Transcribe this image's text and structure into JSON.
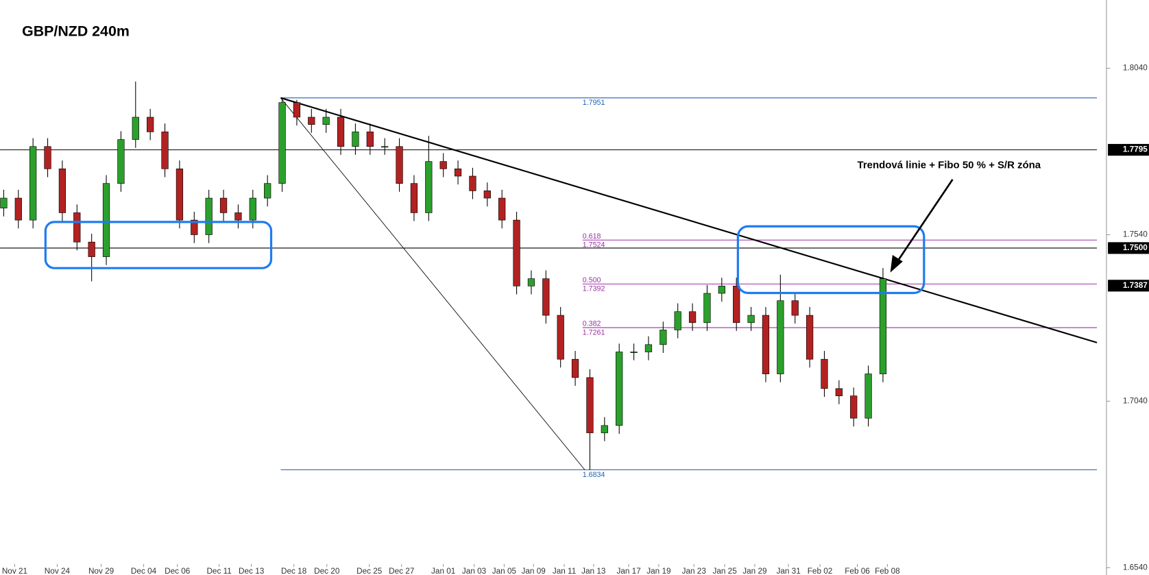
{
  "chart_data": {
    "type": "candlestick",
    "title": "GBP/NZD 240m",
    "annotation": "Trendová linie + Fibo 50 % + S/R zóna",
    "up_color": "#2ca02c",
    "down_color": "#b22222",
    "open": [
      1.762,
      1.765,
      1.7584,
      1.7805,
      1.7738,
      1.7606,
      1.7518,
      1.7474,
      1.7694,
      1.7826,
      1.7893,
      1.7849,
      1.7738,
      1.7584,
      1.754,
      1.765,
      1.7606,
      1.7584,
      1.765,
      1.7694,
      1.7937,
      1.7893,
      1.7871,
      1.7893,
      1.7805,
      1.7849,
      1.7805,
      1.7805,
      1.7694,
      1.7606,
      1.776,
      1.7738,
      1.7716,
      1.7672,
      1.765,
      1.7584,
      1.7386,
      1.7408,
      1.7298,
      1.7166,
      1.7111,
      1.6945,
      1.6967,
      1.7188,
      1.7188,
      1.721,
      1.7254,
      1.7309,
      1.7276,
      1.7364,
      1.7386,
      1.7276,
      1.7298,
      1.7122,
      1.7342,
      1.7298,
      1.7166,
      1.7078,
      1.7056,
      1.6989,
      1.7122
    ],
    "high": [
      1.7675,
      1.7675,
      1.783,
      1.783,
      1.7763,
      1.7631,
      1.7543,
      1.7719,
      1.7851,
      1.8,
      1.7918,
      1.7874,
      1.7763,
      1.7609,
      1.7675,
      1.7675,
      1.7631,
      1.7675,
      1.7719,
      1.7951,
      1.7945,
      1.7918,
      1.7918,
      1.7918,
      1.7874,
      1.7874,
      1.783,
      1.783,
      1.7719,
      1.7837,
      1.7785,
      1.7763,
      1.7741,
      1.7697,
      1.7675,
      1.7609,
      1.7433,
      1.7433,
      1.7323,
      1.7191,
      1.7136,
      1.6992,
      1.7213,
      1.7213,
      1.7235,
      1.7279,
      1.7334,
      1.7334,
      1.7389,
      1.7411,
      1.7411,
      1.7323,
      1.7323,
      1.742,
      1.7367,
      1.7323,
      1.7191,
      1.7103,
      1.7081,
      1.7147,
      1.744
    ],
    "low": [
      1.7595,
      1.7559,
      1.7559,
      1.7713,
      1.7581,
      1.7493,
      1.74,
      1.7449,
      1.7669,
      1.7801,
      1.7824,
      1.7713,
      1.7559,
      1.7515,
      1.7515,
      1.7581,
      1.7559,
      1.7559,
      1.7625,
      1.7669,
      1.7868,
      1.7846,
      1.7846,
      1.778,
      1.778,
      1.778,
      1.778,
      1.7669,
      1.7581,
      1.7581,
      1.7713,
      1.7691,
      1.7647,
      1.7625,
      1.7559,
      1.7361,
      1.7361,
      1.7273,
      1.7141,
      1.7086,
      1.6834,
      1.692,
      1.6942,
      1.7163,
      1.7163,
      1.7185,
      1.7229,
      1.7251,
      1.7251,
      1.7339,
      1.7251,
      1.7251,
      1.7097,
      1.7097,
      1.7273,
      1.7141,
      1.7053,
      1.7031,
      1.6964,
      1.6964,
      1.7097
    ],
    "close": [
      1.765,
      1.7584,
      1.7805,
      1.7738,
      1.7606,
      1.7518,
      1.7474,
      1.7694,
      1.7826,
      1.7893,
      1.7849,
      1.7738,
      1.7584,
      1.754,
      1.765,
      1.7606,
      1.7584,
      1.765,
      1.7694,
      1.7937,
      1.7893,
      1.7871,
      1.7893,
      1.7805,
      1.7849,
      1.7805,
      1.7805,
      1.7694,
      1.7606,
      1.776,
      1.7738,
      1.7716,
      1.7672,
      1.765,
      1.7584,
      1.7386,
      1.7408,
      1.7298,
      1.7166,
      1.7111,
      1.6945,
      1.6967,
      1.7188,
      1.7188,
      1.721,
      1.7254,
      1.7309,
      1.7276,
      1.7364,
      1.7386,
      1.7276,
      1.7298,
      1.7122,
      1.7342,
      1.7298,
      1.7166,
      1.7078,
      1.7056,
      1.6989,
      1.7122,
      1.7408
    ],
    "xlim": [
      -0.25,
      74.6
    ],
    "xticks": [
      {
        "value": 0.75,
        "label": "Nov 21"
      },
      {
        "value": 3.65,
        "label": "Nov 24"
      },
      {
        "value": 6.65,
        "label": "Nov 29"
      },
      {
        "value": 9.55,
        "label": "Dec 04"
      },
      {
        "value": 11.85,
        "label": "Dec 06"
      },
      {
        "value": 14.7,
        "label": "Dec 11"
      },
      {
        "value": 16.9,
        "label": "Dec 13"
      },
      {
        "value": 19.8,
        "label": "Dec 18"
      },
      {
        "value": 22.05,
        "label": "Dec 20"
      },
      {
        "value": 24.95,
        "label": "Dec 25"
      },
      {
        "value": 27.15,
        "label": "Dec 27"
      },
      {
        "value": 30,
        "label": "Jan 01"
      },
      {
        "value": 32.1,
        "label": "Jan 03"
      },
      {
        "value": 34.15,
        "label": "Jan 05"
      },
      {
        "value": 36.15,
        "label": "Jan 09"
      },
      {
        "value": 38.25,
        "label": "Jan 11"
      },
      {
        "value": 40.25,
        "label": "Jan 13"
      },
      {
        "value": 42.65,
        "label": "Jan 17"
      },
      {
        "value": 44.7,
        "label": "Jan 19"
      },
      {
        "value": 47.1,
        "label": "Jan 23"
      },
      {
        "value": 49.2,
        "label": "Jan 25"
      },
      {
        "value": 51.25,
        "label": "Jan 29"
      },
      {
        "value": 53.55,
        "label": "Jan 31"
      },
      {
        "value": 55.7,
        "label": "Feb 02"
      },
      {
        "value": 58.25,
        "label": "Feb 06"
      },
      {
        "value": 60.3,
        "label": "Feb 08"
      }
    ],
    "ylim": [
      1.6518,
      1.8245
    ],
    "yticks": [
      {
        "value": 1.804,
        "label": "1.8040"
      },
      {
        "value": 1.754,
        "label": "1.7540"
      },
      {
        "value": 1.704,
        "label": "1.7040"
      },
      {
        "value": 1.654,
        "label": "1.6540"
      }
    ],
    "sr_levels": [
      1.7795,
      {
        "value": 1.75,
        "label": "1.7500"
      }
    ],
    "price_marker": 1.7387,
    "fib": {
      "high": 1.7951,
      "low": 1.6834,
      "x_start": 18.9,
      "level_x_start": 39.5,
      "line_color": "#1f5fb0",
      "level_color": "#9b2fa6",
      "levels": [
        {
          "ratio": 0.618,
          "price": 1.7524
        },
        {
          "ratio": {
            "value": 0.5,
            "label": "0.500"
          },
          "price": 1.7392
        },
        {
          "ratio": 0.382,
          "price": 1.7261
        }
      ]
    },
    "trendlines": [
      {
        "x": [
          18.9,
          74.6
        ],
        "y": [
          1.7951,
          1.7216
        ],
        "width": 2
      },
      {
        "x": [
          18.9,
          39.65
        ],
        "y": [
          1.7951,
          1.6834
        ],
        "width": 0.8
      }
    ]
  }
}
